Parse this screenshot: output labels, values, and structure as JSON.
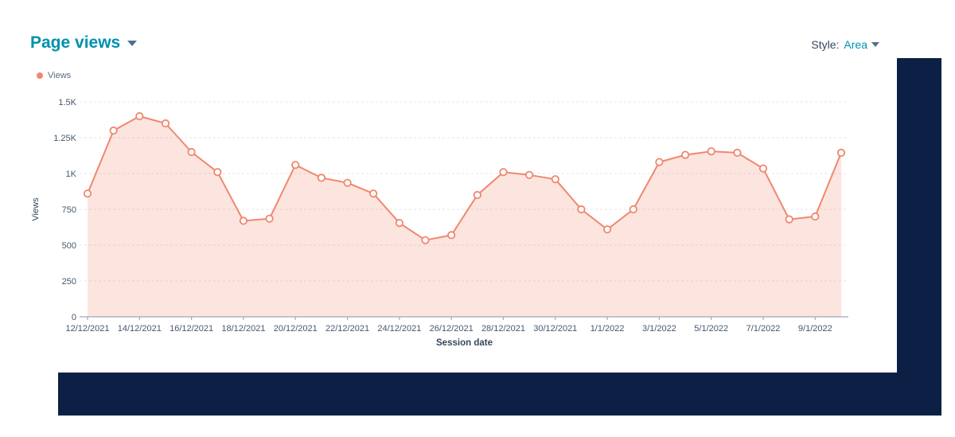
{
  "header": {
    "title": "Page views",
    "style_label": "Style:",
    "style_value": "Area"
  },
  "legend": {
    "items": [
      {
        "label": "Views",
        "color": "#f0876e"
      }
    ]
  },
  "chart_data": {
    "type": "area",
    "title": "Page views",
    "xlabel": "Session date",
    "ylabel": "Views",
    "x": [
      "12/12/2021",
      "13/12/2021",
      "14/12/2021",
      "15/12/2021",
      "16/12/2021",
      "17/12/2021",
      "18/12/2021",
      "19/12/2021",
      "20/12/2021",
      "21/12/2021",
      "22/12/2021",
      "23/12/2021",
      "24/12/2021",
      "25/12/2021",
      "26/12/2021",
      "27/12/2021",
      "28/12/2021",
      "29/12/2021",
      "30/12/2021",
      "31/12/2021",
      "1/1/2022",
      "2/1/2022",
      "3/1/2022",
      "4/1/2022",
      "5/1/2022",
      "6/1/2022",
      "7/1/2022",
      "8/1/2022",
      "9/1/2022",
      "10/1/2022"
    ],
    "series": [
      {
        "name": "Views",
        "values": [
          860,
          1300,
          1400,
          1350,
          1150,
          1010,
          670,
          685,
          1060,
          970,
          935,
          860,
          655,
          535,
          570,
          850,
          1010,
          990,
          960,
          750,
          610,
          750,
          1080,
          1130,
          1155,
          1145,
          1035,
          680,
          700,
          1145
        ]
      }
    ],
    "x_tick_labels": [
      "12/12/2021",
      "14/12/2021",
      "16/12/2021",
      "18/12/2021",
      "20/12/2021",
      "22/12/2021",
      "24/12/2021",
      "26/12/2021",
      "28/12/2021",
      "30/12/2021",
      "1/1/2022",
      "3/1/2022",
      "5/1/2022",
      "7/1/2022",
      "9/1/2022"
    ],
    "x_tick_every": 2,
    "y_ticks": [
      0,
      250,
      500,
      750,
      1000,
      1250,
      1500
    ],
    "y_tick_labels": [
      "0",
      "250",
      "500",
      "750",
      "1K",
      "1.25K",
      "1.5K"
    ],
    "ylim": [
      0,
      1500
    ],
    "grid": "horizontal-dashed",
    "legend_position": "top-left",
    "line_color": "#f0876e",
    "fill_color": "rgba(240,135,110,0.22)",
    "marker": "circle-open"
  },
  "colors": {
    "accent_teal": "#0091ae",
    "frame_navy": "#0b2044",
    "axis_text": "#46586d",
    "axis_title_text": "#33475b",
    "axis_line": "#9fabbc",
    "gridline": "#e4e4e4"
  }
}
